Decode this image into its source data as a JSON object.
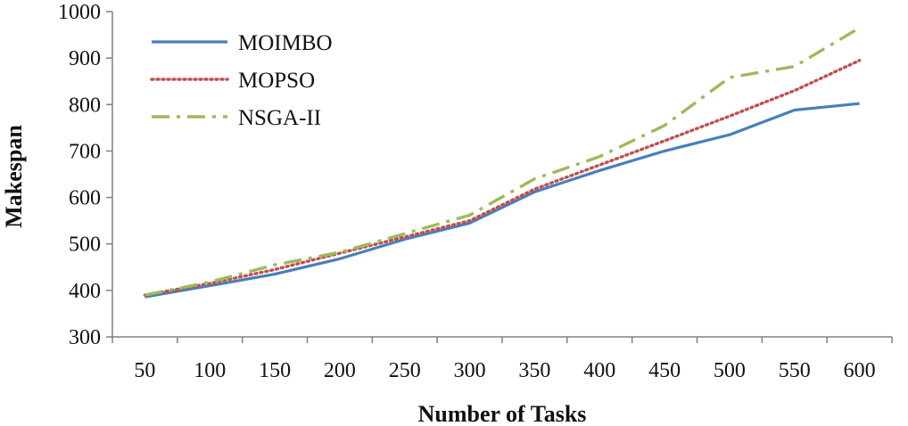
{
  "chart_data": {
    "type": "line",
    "title": "",
    "xlabel": "Number of Tasks",
    "ylabel": "Makespan",
    "categories": [
      "50",
      "100",
      "150",
      "200",
      "250",
      "300",
      "350",
      "400",
      "450",
      "500",
      "550",
      "600"
    ],
    "ylim": [
      300,
      1000
    ],
    "yticks": [
      300,
      400,
      500,
      600,
      700,
      800,
      900,
      1000
    ],
    "grid": false,
    "legend_position": "top-left",
    "series": [
      {
        "name": "MOIMBO",
        "color": "#4a7ebb",
        "style": "solid",
        "values": [
          386,
          410,
          435,
          468,
          510,
          545,
          612,
          658,
          700,
          735,
          788,
          802
        ]
      },
      {
        "name": "MOPSO",
        "color": "#c0504d",
        "style": "dotted",
        "values": [
          390,
          415,
          445,
          480,
          515,
          550,
          618,
          670,
          722,
          775,
          830,
          895
        ]
      },
      {
        "name": "NSGA-II",
        "color": "#9bbb59",
        "style": "dash-dot",
        "values": [
          390,
          418,
          455,
          482,
          522,
          562,
          640,
          688,
          755,
          858,
          882,
          965
        ]
      }
    ]
  }
}
